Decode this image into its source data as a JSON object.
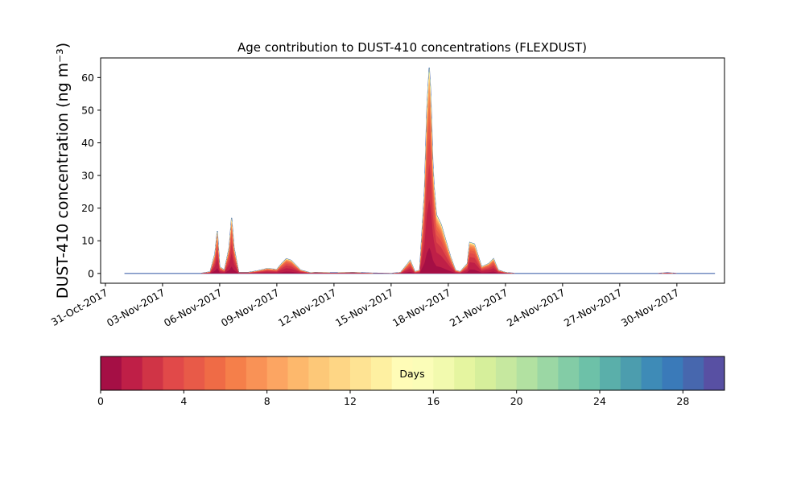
{
  "chart_data": {
    "type": "area",
    "title": "Age contribution to DUST-410 concentrations (FLEXDUST)",
    "ylabel": "DUST-410 concentration (ng m⁻³)",
    "xlabel": "",
    "x_type": "date",
    "x_start": "2017-11-01",
    "xlim": [
      "2017-10-30T18:00",
      "2017-12-02T12:00"
    ],
    "ylim": [
      -3,
      66
    ],
    "y_ticks": [
      0,
      10,
      20,
      30,
      40,
      50,
      60
    ],
    "x_tick_labels": [
      "31-Oct-2017",
      "03-Nov-2017",
      "06-Nov-2017",
      "09-Nov-2017",
      "12-Nov-2017",
      "15-Nov-2017",
      "18-Nov-2017",
      "21-Nov-2017",
      "24-Nov-2017",
      "27-Nov-2017",
      "30-Nov-2017"
    ],
    "x_tick_dates": [
      "2017-10-31",
      "2017-11-03",
      "2017-11-06",
      "2017-11-09",
      "2017-11-12",
      "2017-11-15",
      "2017-11-18",
      "2017-11-21",
      "2017-11-24",
      "2017-11-27",
      "2017-11-30"
    ],
    "total_series": [
      [
        "2017-11-01T00:00",
        0
      ],
      [
        "2017-11-03T00:00",
        0
      ],
      [
        "2017-11-05T00:00",
        0
      ],
      [
        "2017-11-05T12:00",
        0.5
      ],
      [
        "2017-11-05T18:00",
        6
      ],
      [
        "2017-11-05T21:00",
        13
      ],
      [
        "2017-11-06T00:00",
        2
      ],
      [
        "2017-11-06T06:00",
        1
      ],
      [
        "2017-11-06T12:00",
        8
      ],
      [
        "2017-11-06T15:00",
        17
      ],
      [
        "2017-11-06T18:00",
        8
      ],
      [
        "2017-11-07T00:00",
        0.3
      ],
      [
        "2017-11-07T12:00",
        0.3
      ],
      [
        "2017-11-08T00:00",
        0.8
      ],
      [
        "2017-11-08T12:00",
        1.5
      ],
      [
        "2017-11-09T00:00",
        1.2
      ],
      [
        "2017-11-09T06:00",
        3
      ],
      [
        "2017-11-09T12:00",
        4.5
      ],
      [
        "2017-11-09T18:00",
        4
      ],
      [
        "2017-11-10T06:00",
        1
      ],
      [
        "2017-11-10T18:00",
        0.2
      ],
      [
        "2017-11-11T00:00",
        0.3
      ],
      [
        "2017-11-12T00:00",
        0.2
      ],
      [
        "2017-11-13T00:00",
        0.3
      ],
      [
        "2017-11-14T00:00",
        0.1
      ],
      [
        "2017-11-15T00:00",
        0
      ],
      [
        "2017-11-15T12:00",
        0.3
      ],
      [
        "2017-11-15T21:00",
        3
      ],
      [
        "2017-11-16T00:00",
        4
      ],
      [
        "2017-11-16T06:00",
        0.5
      ],
      [
        "2017-11-16T12:00",
        1
      ],
      [
        "2017-11-16T18:00",
        25
      ],
      [
        "2017-11-16T21:00",
        50
      ],
      [
        "2017-11-17T00:00",
        63
      ],
      [
        "2017-11-17T02:00",
        55
      ],
      [
        "2017-11-17T05:00",
        30
      ],
      [
        "2017-11-17T09:00",
        18
      ],
      [
        "2017-11-17T15:00",
        15
      ],
      [
        "2017-11-17T21:00",
        10
      ],
      [
        "2017-11-18T03:00",
        5
      ],
      [
        "2017-11-18T09:00",
        1
      ],
      [
        "2017-11-18T15:00",
        0.5
      ],
      [
        "2017-11-19T00:00",
        3
      ],
      [
        "2017-11-19T03:00",
        9.5
      ],
      [
        "2017-11-19T09:00",
        9
      ],
      [
        "2017-11-19T18:00",
        2
      ],
      [
        "2017-11-20T03:00",
        3
      ],
      [
        "2017-11-20T09:00",
        4.5
      ],
      [
        "2017-11-20T15:00",
        1
      ],
      [
        "2017-11-21T00:00",
        0.3
      ],
      [
        "2017-11-21T12:00",
        0
      ],
      [
        "2017-11-23T00:00",
        0
      ],
      [
        "2017-11-26T00:00",
        0
      ],
      [
        "2017-11-29T00:00",
        0
      ],
      [
        "2017-11-29T12:00",
        0.2
      ],
      [
        "2017-11-30T00:00",
        0
      ],
      [
        "2017-12-02T00:00",
        0
      ]
    ],
    "colorbar": {
      "label": "Days",
      "min": 0,
      "max": 30,
      "ticks": [
        0,
        4,
        8,
        12,
        16,
        20,
        24,
        28
      ],
      "colors": [
        "#a50f45",
        "#bf1f47",
        "#d03446",
        "#e14949",
        "#e85a48",
        "#ef6b46",
        "#f57f4a",
        "#f99256",
        "#fca562",
        "#fdb86c",
        "#fdc878",
        "#fed685",
        "#fee393",
        "#fef0a1",
        "#fffcb7",
        "#fbfdb8",
        "#f2faae",
        "#e5f5a0",
        "#d6ef9b",
        "#c6e89f",
        "#b2e1a1",
        "#9bd7a4",
        "#83cca6",
        "#6dc1a8",
        "#5aafaa",
        "#4c9dae",
        "#3e8bb7",
        "#3a7ab9",
        "#4767ae",
        "#5850a3"
      ]
    },
    "grid": false,
    "legend": "none"
  }
}
